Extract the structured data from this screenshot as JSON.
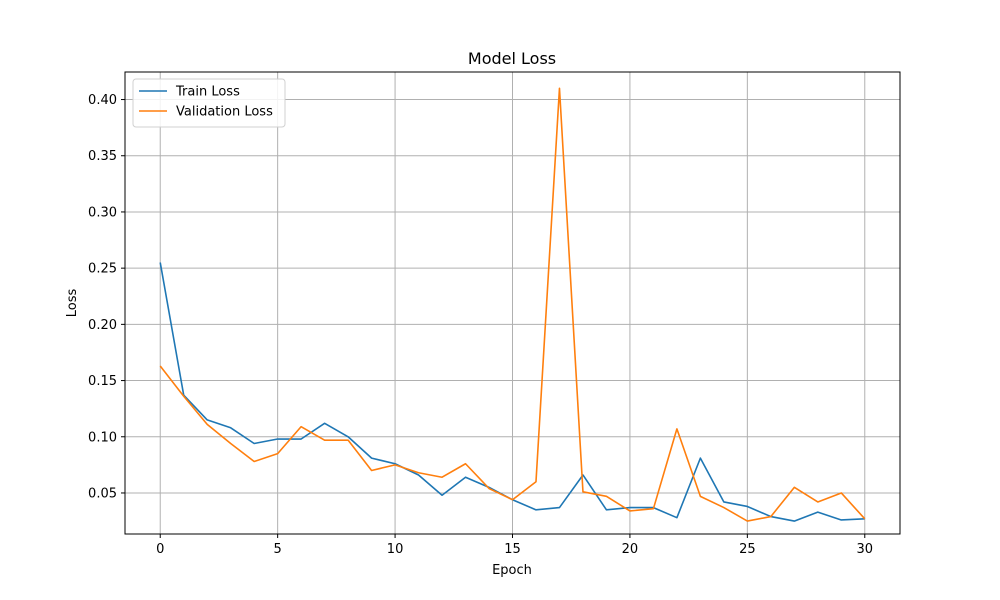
{
  "chart_data": {
    "type": "line",
    "title": "Model Loss",
    "xlabel": "Epoch",
    "ylabel": "Loss",
    "xlim": [
      -1.5,
      31.5
    ],
    "ylim": [
      0.0135,
      0.4245
    ],
    "xticks": [
      0,
      5,
      10,
      15,
      20,
      25,
      30
    ],
    "yticks": [
      0.05,
      0.1,
      0.15,
      0.2,
      0.25,
      0.3,
      0.35,
      0.4
    ],
    "ytick_labels": [
      "0.05",
      "0.10",
      "0.15",
      "0.20",
      "0.25",
      "0.30",
      "0.35",
      "0.40"
    ],
    "grid": true,
    "legend_position": "top-left",
    "x": [
      0,
      1,
      2,
      3,
      4,
      5,
      6,
      7,
      8,
      9,
      10,
      11,
      12,
      13,
      14,
      15,
      16,
      17,
      18,
      19,
      20,
      21,
      22,
      23,
      24,
      25,
      26,
      27,
      28,
      29,
      30
    ],
    "series": [
      {
        "name": "Train Loss",
        "color": "#1f77b4",
        "values": [
          0.255,
          0.137,
          0.115,
          0.108,
          0.094,
          0.098,
          0.098,
          0.112,
          0.1,
          0.081,
          0.076,
          0.066,
          0.048,
          0.064,
          0.055,
          0.044,
          0.035,
          0.037,
          0.066,
          0.035,
          0.037,
          0.037,
          0.028,
          0.081,
          0.042,
          0.038,
          0.029,
          0.025,
          0.033,
          0.026,
          0.027
        ]
      },
      {
        "name": "Validation Loss",
        "color": "#ff7f0e",
        "values": [
          0.163,
          0.136,
          0.111,
          0.094,
          0.078,
          0.085,
          0.109,
          0.097,
          0.097,
          0.07,
          0.075,
          0.068,
          0.064,
          0.076,
          0.054,
          0.044,
          0.06,
          0.41,
          0.051,
          0.047,
          0.034,
          0.036,
          0.107,
          0.047,
          0.037,
          0.025,
          0.029,
          0.055,
          0.042,
          0.05,
          0.027
        ]
      }
    ]
  }
}
